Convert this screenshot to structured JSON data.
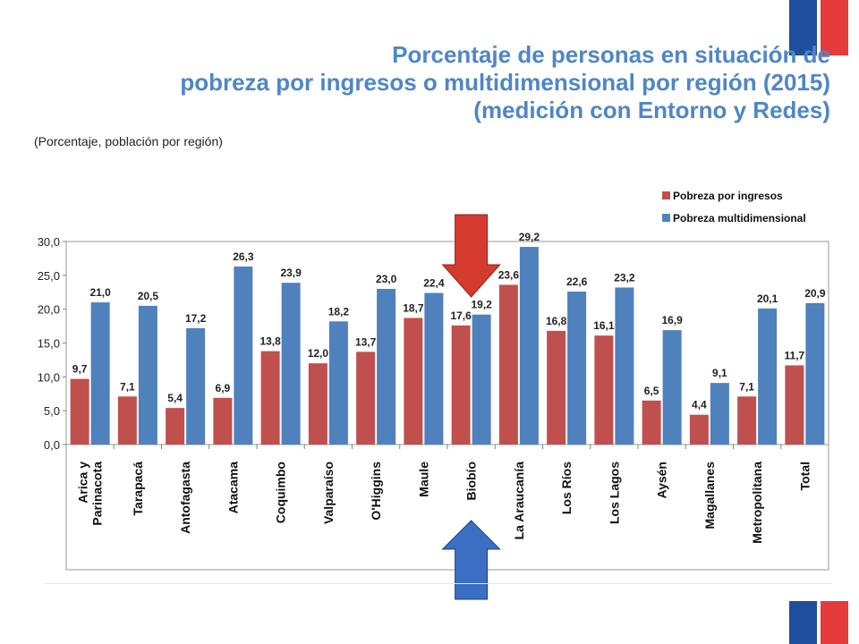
{
  "title": {
    "line1": "Porcentaje de personas en situación de",
    "line2": "pobreza por ingresos o multidimensional por región (2015)",
    "line3": "(medición con Entorno y Redes)"
  },
  "subtitle": "(Porcentaje, población por región)",
  "colors": {
    "ingresos": "#c0504d",
    "multidimensional": "#4f81bd",
    "title": "#4f86c6",
    "arrow_red": "#d63a2f",
    "arrow_blue": "#3b6fc4"
  },
  "chart_data": {
    "type": "bar",
    "categories": [
      "Arica y Parinacota",
      "Tarapacá",
      "Antofagasta",
      "Atacama",
      "Coquimbo",
      "Valparaíso",
      "O'Higgins",
      "Maule",
      "Biobío",
      "La Araucanía",
      "Los Ríos",
      "Los Lagos",
      "Aysén",
      "Magallanes",
      "Metropolitana",
      "Total"
    ],
    "series": [
      {
        "name": "Pobreza por ingresos",
        "values": [
          9.7,
          7.1,
          5.4,
          6.9,
          13.8,
          12.0,
          13.7,
          18.7,
          17.6,
          23.6,
          16.8,
          16.1,
          6.5,
          4.4,
          7.1,
          11.7
        ],
        "labels": [
          "9,7",
          "7,1",
          "5,4",
          "6,9",
          "13,8",
          "12,0",
          "13,7",
          "18,7",
          "17,6",
          "23,6",
          "16,8",
          "16,1",
          "6,5",
          "4,4",
          "7,1",
          "11,7"
        ]
      },
      {
        "name": "Pobreza multidimensional",
        "values": [
          21.0,
          20.5,
          17.2,
          26.3,
          23.9,
          18.2,
          23.0,
          22.4,
          19.2,
          29.2,
          22.6,
          23.2,
          16.9,
          9.1,
          20.1,
          20.9
        ],
        "labels": [
          "21,0",
          "20,5",
          "17,2",
          "26,3",
          "23,9",
          "18,2",
          "23,0",
          "22,4",
          "19,2",
          "29,2",
          "22,6",
          "23,2",
          "16,9",
          "9,1",
          "20,1",
          "20,9"
        ]
      }
    ],
    "yticks": [
      "0,0",
      "5,0",
      "10,0",
      "15,0",
      "20,0",
      "25,0",
      "30,0"
    ],
    "ylim": [
      0,
      30
    ],
    "grid": false,
    "legend_position": "top-right",
    "highlight_category": "Biobío"
  }
}
